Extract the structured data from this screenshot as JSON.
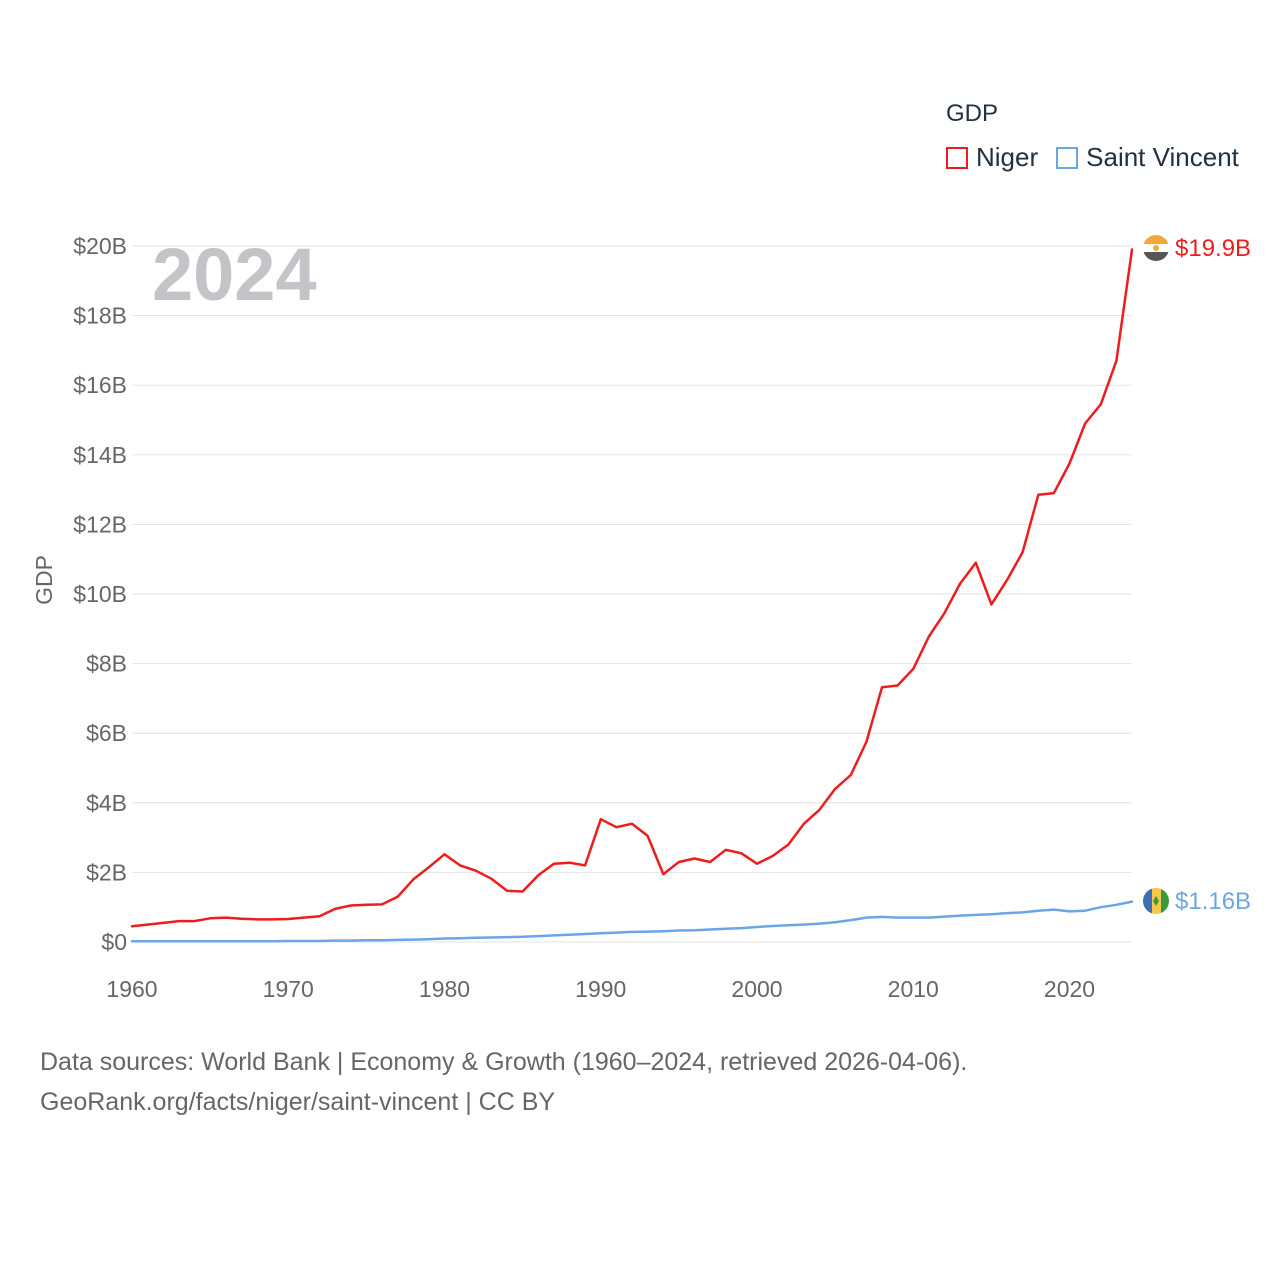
{
  "colors": {
    "niger": "#ee1c1c",
    "saint_vincent": "#6aa6e6",
    "grid": "#e3e3e3",
    "watermark": "#c2c4c7"
  },
  "legend": {
    "title": "GDP",
    "items": [
      {
        "label": "Niger"
      },
      {
        "label": "Saint Vincent"
      }
    ]
  },
  "watermark_year": "2024",
  "footer": {
    "line1": "Data sources: World Bank | Economy & Growth (1960–2024, retrieved 2026-04-06).",
    "line2": "GeoRank.org/facts/niger/saint-vincent | CC BY"
  },
  "chart_data": {
    "type": "line",
    "title": "GDP",
    "ylabel": "GDP",
    "xlabel": "",
    "xlim": [
      1960,
      2024
    ],
    "ylim": [
      0,
      20
    ],
    "x_ticks": [
      1960,
      1970,
      1980,
      1990,
      2000,
      2010,
      2020
    ],
    "y_ticks": [
      {
        "value": 0,
        "label": "$0"
      },
      {
        "value": 2,
        "label": "$2B"
      },
      {
        "value": 4,
        "label": "$4B"
      },
      {
        "value": 6,
        "label": "$6B"
      },
      {
        "value": 8,
        "label": "$8B"
      },
      {
        "value": 10,
        "label": "$10B"
      },
      {
        "value": 12,
        "label": "$12B"
      },
      {
        "value": 14,
        "label": "$14B"
      },
      {
        "value": 16,
        "label": "$16B"
      },
      {
        "value": 18,
        "label": "$18B"
      },
      {
        "value": 20,
        "label": "$20B"
      }
    ],
    "grid": true,
    "legend_position": "top-right",
    "x": [
      1960,
      1961,
      1962,
      1963,
      1964,
      1965,
      1966,
      1967,
      1968,
      1969,
      1970,
      1971,
      1972,
      1973,
      1974,
      1975,
      1976,
      1977,
      1978,
      1979,
      1980,
      1981,
      1982,
      1983,
      1984,
      1985,
      1986,
      1987,
      1988,
      1989,
      1990,
      1991,
      1992,
      1993,
      1994,
      1995,
      1996,
      1997,
      1998,
      1999,
      2000,
      2001,
      2002,
      2003,
      2004,
      2005,
      2006,
      2007,
      2008,
      2009,
      2010,
      2011,
      2012,
      2013,
      2014,
      2015,
      2016,
      2017,
      2018,
      2019,
      2020,
      2021,
      2022,
      2023,
      2024
    ],
    "series": [
      {
        "name": "Niger",
        "end_label": "$19.9B",
        "values": [
          0.45,
          0.5,
          0.55,
          0.6,
          0.6,
          0.68,
          0.7,
          0.67,
          0.65,
          0.65,
          0.66,
          0.7,
          0.74,
          0.95,
          1.05,
          1.07,
          1.08,
          1.3,
          1.8,
          2.15,
          2.52,
          2.2,
          2.05,
          1.82,
          1.47,
          1.45,
          1.92,
          2.25,
          2.28,
          2.2,
          3.53,
          3.3,
          3.4,
          3.05,
          1.95,
          2.3,
          2.4,
          2.3,
          2.65,
          2.55,
          2.25,
          2.47,
          2.8,
          3.4,
          3.8,
          4.4,
          4.8,
          5.75,
          7.32,
          7.37,
          7.85,
          8.78,
          9.45,
          10.3,
          10.9,
          9.7,
          10.4,
          11.2,
          12.85,
          12.9,
          13.75,
          14.9,
          15.45,
          16.7,
          19.9
        ]
      },
      {
        "name": "Saint Vincent",
        "end_label": "$1.16B",
        "values": [
          0.02,
          0.02,
          0.02,
          0.02,
          0.02,
          0.02,
          0.02,
          0.02,
          0.02,
          0.02,
          0.03,
          0.03,
          0.03,
          0.04,
          0.04,
          0.05,
          0.05,
          0.06,
          0.07,
          0.08,
          0.1,
          0.11,
          0.12,
          0.13,
          0.14,
          0.15,
          0.17,
          0.19,
          0.21,
          0.23,
          0.25,
          0.27,
          0.29,
          0.3,
          0.31,
          0.33,
          0.34,
          0.36,
          0.38,
          0.4,
          0.43,
          0.46,
          0.48,
          0.5,
          0.53,
          0.57,
          0.63,
          0.7,
          0.72,
          0.7,
          0.7,
          0.7,
          0.73,
          0.76,
          0.78,
          0.8,
          0.83,
          0.85,
          0.9,
          0.93,
          0.88,
          0.9,
          1.0,
          1.07,
          1.16
        ]
      }
    ]
  }
}
